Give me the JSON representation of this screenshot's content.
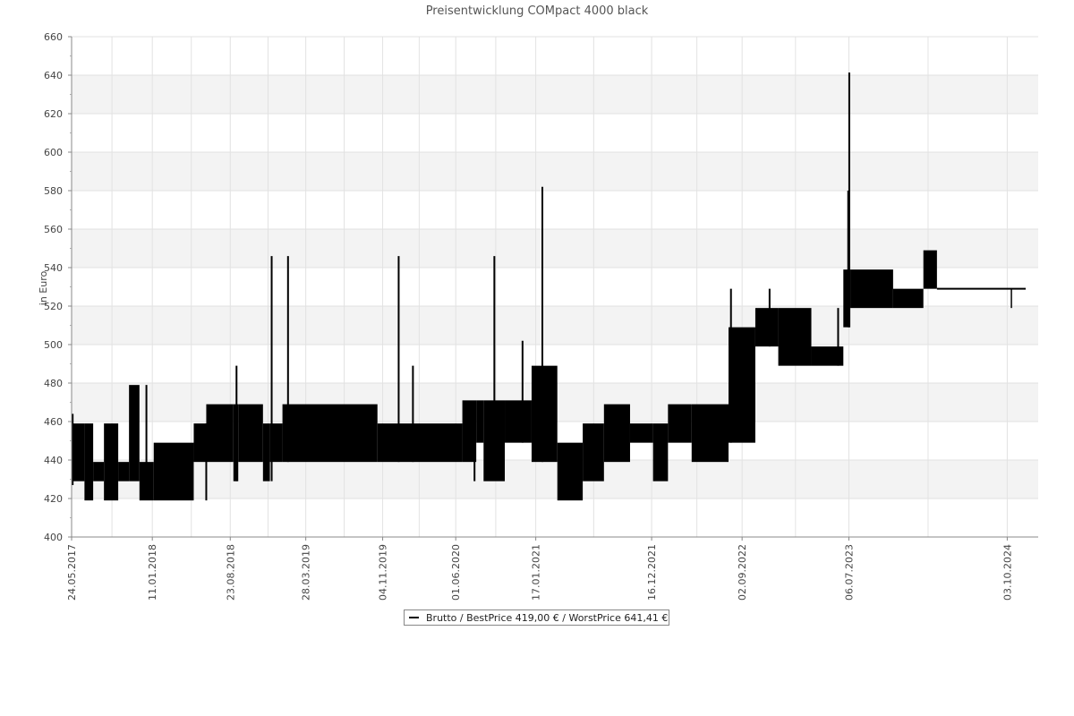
{
  "chart_data": {
    "type": "line",
    "title": "Preisentwicklung COMpact 4000 black",
    "ylabel": "in Euro",
    "xlabel": "",
    "ylim": [
      400,
      660
    ],
    "yticks": [
      400,
      420,
      440,
      460,
      480,
      500,
      520,
      540,
      560,
      580,
      600,
      620,
      640,
      660
    ],
    "xlim": [
      "2017-05-24",
      "2024-12-31"
    ],
    "xticks": [
      "24.05.2017",
      "11.01.2018",
      "23.08.2018",
      "28.03.2019",
      "04.11.2019",
      "01.06.2020",
      "17.01.2021",
      "16.12.2021",
      "02.09.2022",
      "06.07.2023",
      "03.10.2024"
    ],
    "grid": true,
    "legend": {
      "position": "bottom",
      "text": "Brutto / BestPrice  419,00 € / WorstPrice  641,41 €"
    },
    "series": [
      {
        "name": "Brutto",
        "color": "#000000",
        "bands": [
          {
            "x0": "2017-05-24",
            "x1": "2017-06-30",
            "low": 429,
            "high": 459
          },
          {
            "x0": "2017-06-30",
            "x1": "2017-07-25",
            "low": 419,
            "high": 459
          },
          {
            "x0": "2017-07-25",
            "x1": "2017-08-25",
            "low": 429,
            "high": 439
          },
          {
            "x0": "2017-08-25",
            "x1": "2017-10-05",
            "low": 419,
            "high": 459
          },
          {
            "x0": "2017-10-05",
            "x1": "2017-11-05",
            "low": 429,
            "high": 439
          },
          {
            "x0": "2017-11-05",
            "x1": "2017-12-05",
            "low": 429,
            "high": 479
          },
          {
            "x0": "2017-12-05",
            "x1": "2018-01-15",
            "low": 419,
            "high": 439
          },
          {
            "x0": "2018-01-15",
            "x1": "2018-05-10",
            "low": 419,
            "high": 449
          },
          {
            "x0": "2018-05-10",
            "x1": "2018-06-15",
            "low": 439,
            "high": 459
          },
          {
            "x0": "2018-06-15",
            "x1": "2018-09-01",
            "low": 439,
            "high": 469
          },
          {
            "x0": "2018-09-01",
            "x1": "2018-09-15",
            "low": 429,
            "high": 469
          },
          {
            "x0": "2018-09-15",
            "x1": "2018-11-25",
            "low": 439,
            "high": 469
          },
          {
            "x0": "2018-11-25",
            "x1": "2018-12-15",
            "low": 429,
            "high": 459
          },
          {
            "x0": "2018-12-15",
            "x1": "2019-01-20",
            "low": 439,
            "high": 459
          },
          {
            "x0": "2019-01-20",
            "x1": "2019-10-20",
            "low": 439,
            "high": 469
          },
          {
            "x0": "2019-10-20",
            "x1": "2020-06-20",
            "low": 439,
            "high": 459
          },
          {
            "x0": "2020-06-20",
            "x1": "2020-07-30",
            "low": 439,
            "high": 471
          },
          {
            "x0": "2020-07-30",
            "x1": "2020-08-20",
            "low": 449,
            "high": 471
          },
          {
            "x0": "2020-08-20",
            "x1": "2020-10-20",
            "low": 429,
            "high": 471
          },
          {
            "x0": "2020-10-20",
            "x1": "2021-01-05",
            "low": 449,
            "high": 471
          },
          {
            "x0": "2021-01-05",
            "x1": "2021-03-20",
            "low": 439,
            "high": 489
          },
          {
            "x0": "2021-03-20",
            "x1": "2021-06-01",
            "low": 419,
            "high": 449
          },
          {
            "x0": "2021-06-01",
            "x1": "2021-08-01",
            "low": 429,
            "high": 459
          },
          {
            "x0": "2021-08-01",
            "x1": "2021-10-15",
            "low": 439,
            "high": 469
          },
          {
            "x0": "2021-10-15",
            "x1": "2021-12-20",
            "low": 449,
            "high": 459
          },
          {
            "x0": "2021-12-20",
            "x1": "2022-02-01",
            "low": 429,
            "high": 459
          },
          {
            "x0": "2022-02-01",
            "x1": "2022-04-10",
            "low": 449,
            "high": 469
          },
          {
            "x0": "2022-04-10",
            "x1": "2022-07-25",
            "low": 439,
            "high": 469
          },
          {
            "x0": "2022-07-25",
            "x1": "2022-10-10",
            "low": 449,
            "high": 509
          },
          {
            "x0": "2022-10-10",
            "x1": "2022-12-15",
            "low": 499,
            "high": 519
          },
          {
            "x0": "2022-12-15",
            "x1": "2023-03-20",
            "low": 489,
            "high": 519
          },
          {
            "x0": "2023-03-20",
            "x1": "2023-06-20",
            "low": 489,
            "high": 499
          },
          {
            "x0": "2023-06-20",
            "x1": "2023-07-10",
            "low": 509,
            "high": 539
          },
          {
            "x0": "2023-07-10",
            "x1": "2023-11-10",
            "low": 519,
            "high": 539
          },
          {
            "x0": "2023-11-10",
            "x1": "2024-02-05",
            "low": 519,
            "high": 529
          },
          {
            "x0": "2024-02-05",
            "x1": "2024-03-15",
            "low": 529,
            "high": 549
          }
        ],
        "spikes": [
          {
            "x": "2017-05-27",
            "low": 427,
            "high": 464
          },
          {
            "x": "2017-12-25",
            "low": 429,
            "high": 479
          },
          {
            "x": "2018-06-15",
            "low": 419,
            "high": 459
          },
          {
            "x": "2018-09-10",
            "low": 429,
            "high": 489
          },
          {
            "x": "2018-12-20",
            "low": 429,
            "high": 546
          },
          {
            "x": "2019-02-05",
            "low": 439,
            "high": 546
          },
          {
            "x": "2019-12-20",
            "low": 439,
            "high": 546
          },
          {
            "x": "2020-01-30",
            "low": 439,
            "high": 489
          },
          {
            "x": "2020-07-25",
            "low": 429,
            "high": 459
          },
          {
            "x": "2020-09-20",
            "low": 439,
            "high": 546
          },
          {
            "x": "2020-12-10",
            "low": 449,
            "high": 502
          },
          {
            "x": "2021-02-05",
            "low": 439,
            "high": 582
          },
          {
            "x": "2022-08-01",
            "low": 449,
            "high": 529
          },
          {
            "x": "2022-11-20",
            "low": 499,
            "high": 529
          },
          {
            "x": "2023-06-05",
            "low": 489,
            "high": 519
          },
          {
            "x": "2023-07-04",
            "low": 509,
            "high": 580
          },
          {
            "x": "2023-07-07",
            "low": 509,
            "high": 641.41
          }
        ],
        "line": [
          {
            "x": "2024-03-15",
            "y": 529
          },
          {
            "x": "2024-11-25",
            "y": 529
          }
        ],
        "end_drop": {
          "x": "2024-10-15",
          "low": 519,
          "high": 529
        }
      }
    ]
  }
}
